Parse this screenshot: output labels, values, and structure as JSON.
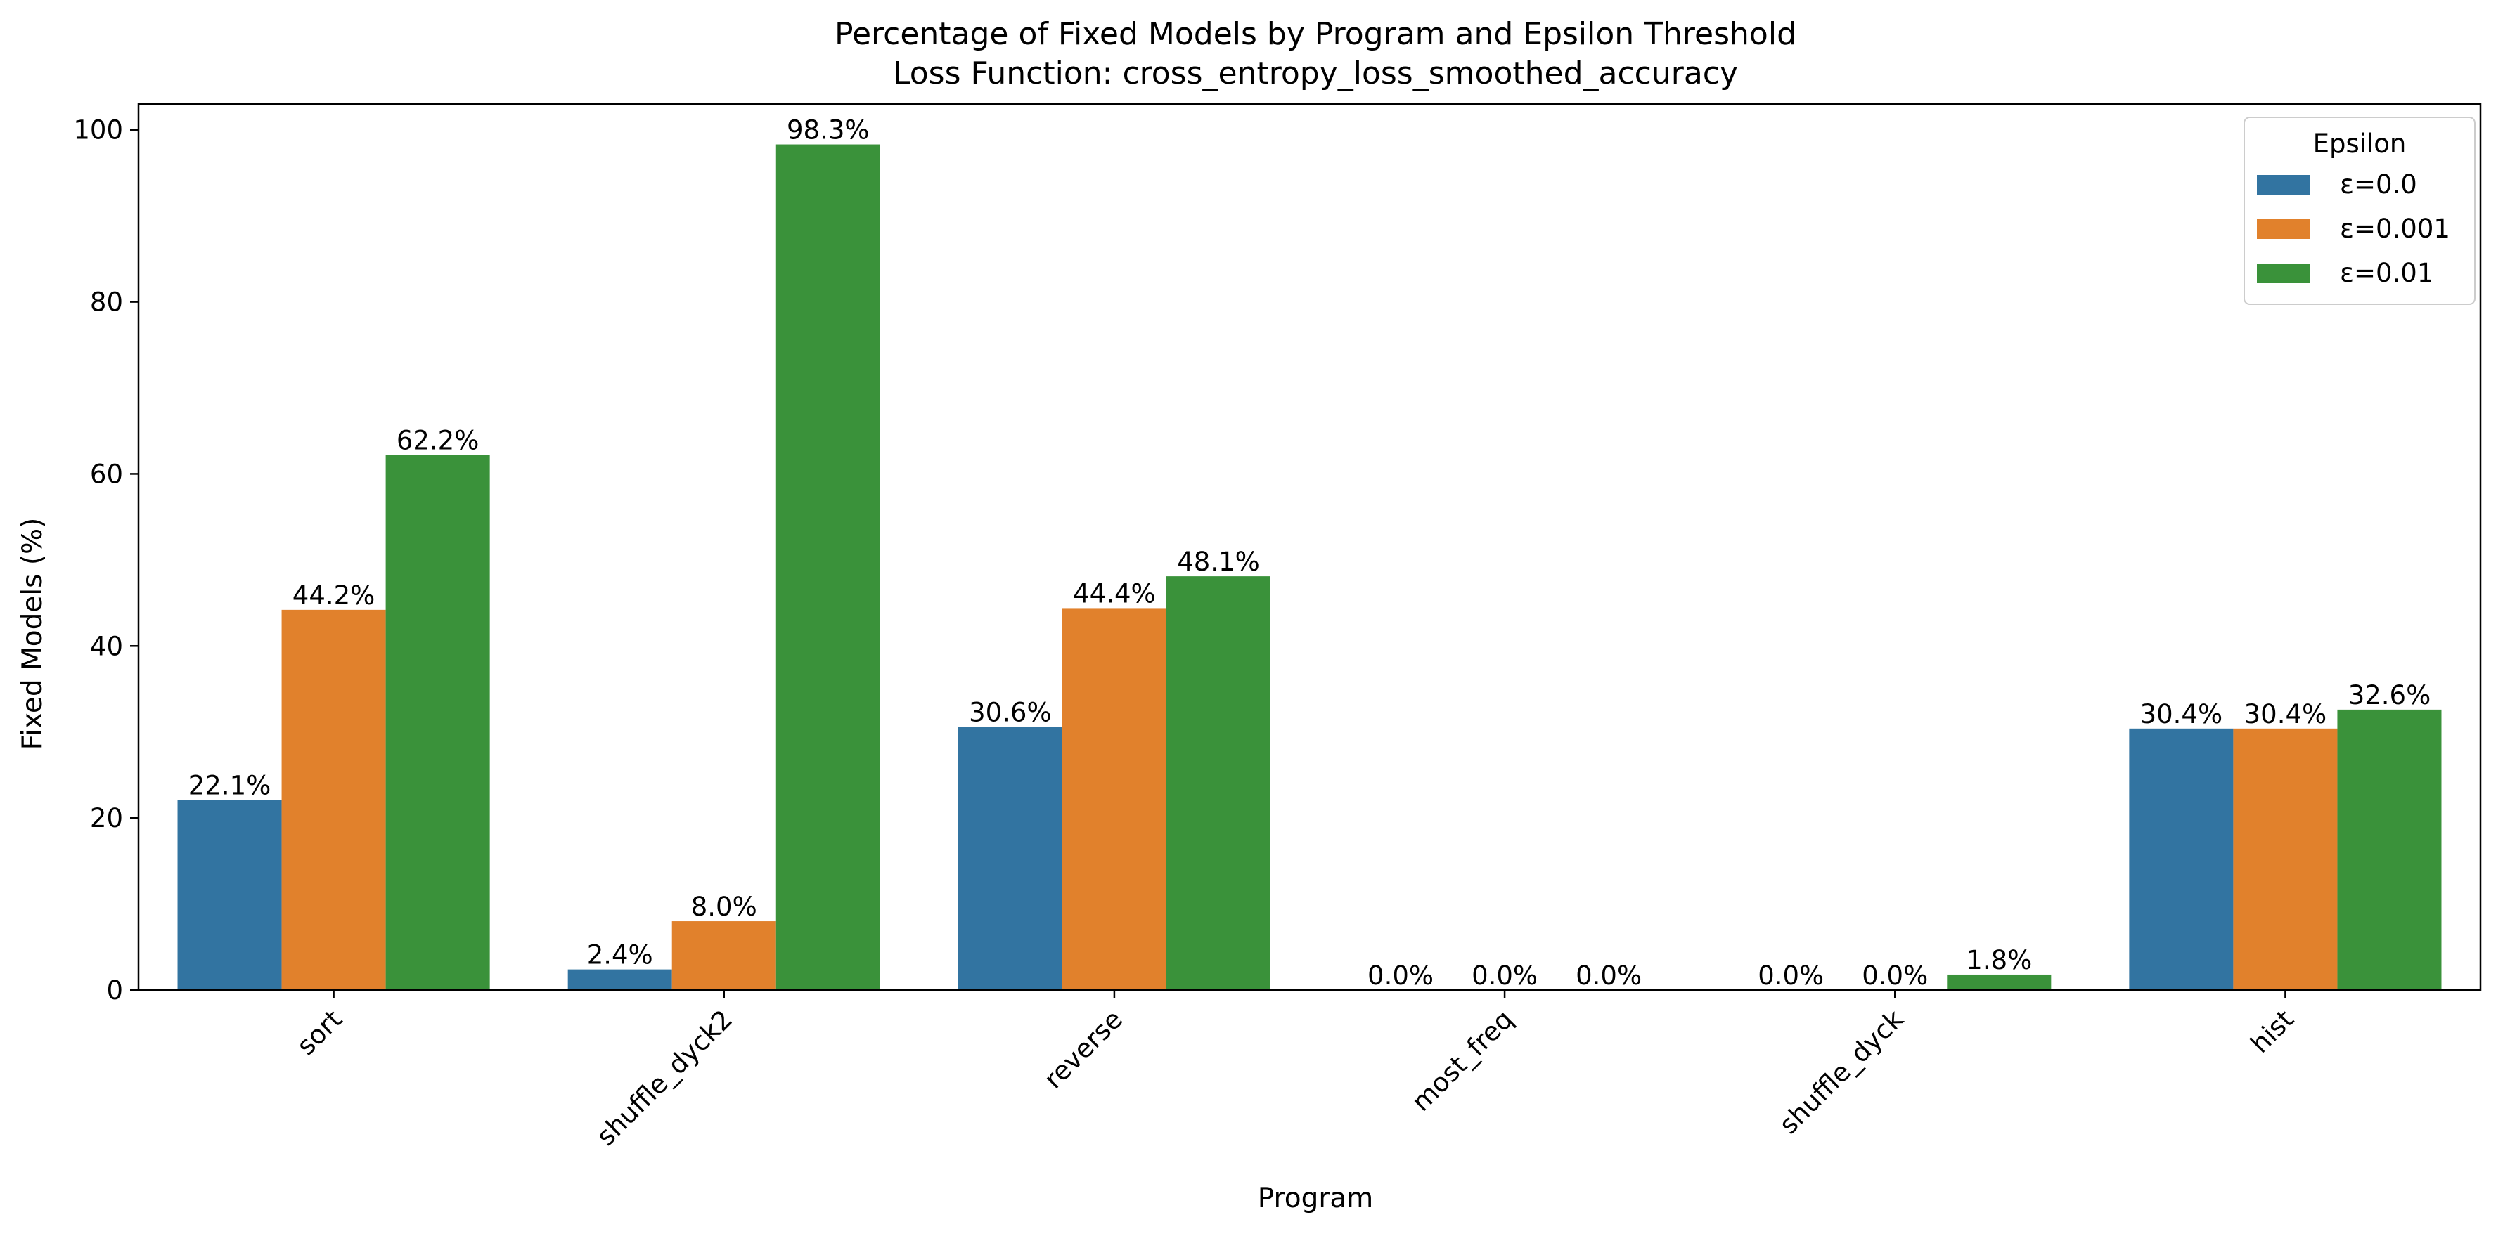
{
  "chart_data": {
    "type": "bar",
    "title": "Percentage of Fixed Models by Program and Epsilon Threshold",
    "subtitle": "Loss Function: cross_entropy_loss_smoothed_accuracy",
    "xlabel": "Program",
    "ylabel": "Fixed Models (%)",
    "ylim": [
      0,
      103
    ],
    "yticks": [
      0,
      20,
      40,
      60,
      80,
      100
    ],
    "grid": false,
    "categories": [
      "sort",
      "shuffle_dyck2",
      "reverse",
      "most_freq",
      "shuffle_dyck",
      "hist"
    ],
    "series": [
      {
        "name": "ε=0.0",
        "color": "#3274a1",
        "values": [
          22.1,
          2.4,
          30.6,
          0.0,
          0.0,
          30.4
        ],
        "labels": [
          "22.1%",
          "2.4%",
          "30.6%",
          "0.0%",
          "0.0%",
          "30.4%"
        ]
      },
      {
        "name": "ε=0.001",
        "color": "#e1812c",
        "values": [
          44.2,
          8.0,
          44.4,
          0.0,
          0.0,
          30.4
        ],
        "labels": [
          "44.2%",
          "8.0%",
          "44.4%",
          "0.0%",
          "0.0%",
          "30.4%"
        ]
      },
      {
        "name": "ε=0.01",
        "color": "#3a923a",
        "values": [
          62.2,
          98.3,
          48.1,
          0.0,
          1.8,
          32.6
        ],
        "labels": [
          "62.2%",
          "98.3%",
          "48.1%",
          "0.0%",
          "1.8%",
          "32.6%"
        ]
      }
    ],
    "legend": {
      "title": "Epsilon",
      "placement": "top-right"
    }
  }
}
